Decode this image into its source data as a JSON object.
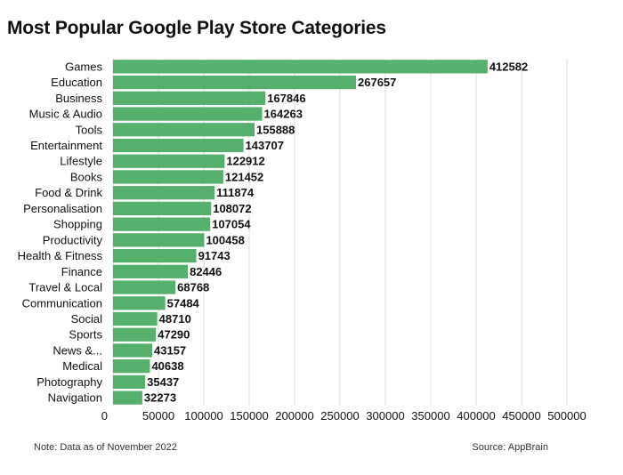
{
  "title": "Most Popular Google Play Store Categories",
  "note": "Note: Data as of November 2022",
  "source": "Source: AppBrain",
  "colors": {
    "bar": "#55b06b",
    "grid": "#dddddd",
    "text": "#111111"
  },
  "chart_data": {
    "type": "bar",
    "orientation": "horizontal",
    "title": "Most Popular Google Play Store Categories",
    "xlabel": "",
    "ylabel": "",
    "xlim": [
      0,
      500000
    ],
    "xticks": [
      0,
      50000,
      100000,
      150000,
      200000,
      250000,
      300000,
      350000,
      400000,
      450000,
      500000
    ],
    "grid": true,
    "categories": [
      "Games",
      "Education",
      "Business",
      "Music & Audio",
      "Tools",
      "Entertainment",
      "Lifestyle",
      "Books",
      "Food & Drink",
      "Personalisation",
      "Shopping",
      "Productivity",
      "Health & Fitness",
      "Finance",
      "Travel & Local",
      "Communication",
      "Social",
      "Sports",
      "News &...",
      "Medical",
      "Photography",
      "Navigation"
    ],
    "values": [
      412582,
      267657,
      167846,
      164263,
      155888,
      143707,
      122912,
      121452,
      111874,
      108072,
      107054,
      100458,
      91743,
      82446,
      68768,
      57484,
      48710,
      47290,
      43157,
      40638,
      35437,
      32273
    ]
  }
}
